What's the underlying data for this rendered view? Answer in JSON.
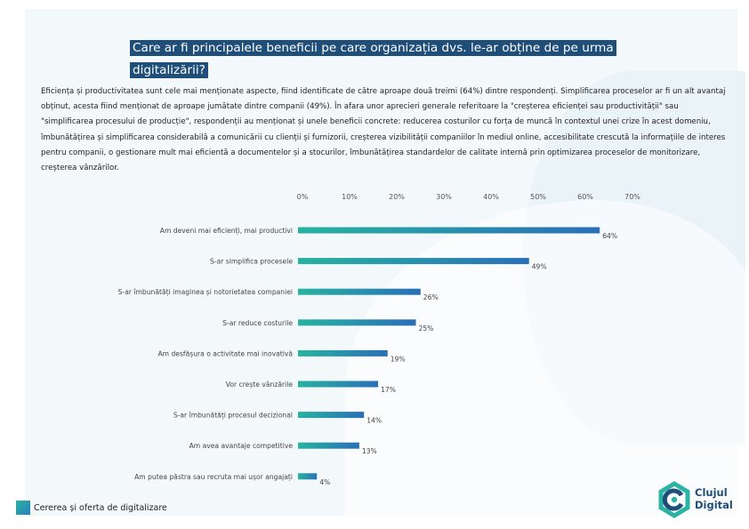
{
  "page": {
    "title": "Care ar fi principalele beneficii pe care organizația dvs. le-ar obține de pe urma digitalizării?",
    "body": "Eficiența și productivitatea sunt cele mai menționate aspecte, fiind identificate de către aproape două treimi (64%) dintre respondenți. Simplificarea proceselor ar fi un alt avantaj obținut, acesta fiind menționat de aproape jumătate dintre companii (49%).  În afara unor aprecieri generale referitoare la \"creșterea eficienței sau productivității\" sau \"simplificarea procesului de producție\", respondenții au menționat și unele beneficii concrete: reducerea costurilor cu forța de muncă în contextul unei crize în acest domeniu, îmbunătățirea și simplificarea considerabilă a comunicării cu clienții și furnizorii, creșterea vizibilității companiilor în mediul online, accesibilitate crescută la informațiile de interes pentru companii, o gestionare mult mai eficientă a documentelor și a stocurilor, îmbunătățirea standardelor de calitate internă prin optimizarea proceselor de monitorizare, creșterea vânzărilor.",
    "footer": "Cererea și oferta de digitalizare",
    "logo_line1": "Clujul",
    "logo_line2": "Digital"
  },
  "colors": {
    "title_bg": "#1f4e79",
    "bar_start": "#27b3a0",
    "bar_end": "#2a6fb8",
    "text": "#222222",
    "axis_text": "#555555"
  },
  "chart_data": {
    "type": "bar",
    "orientation": "horizontal",
    "xlim": [
      0,
      70
    ],
    "ticks": [
      "0%",
      "10%",
      "20%",
      "30%",
      "40%",
      "50%",
      "60%",
      "70%"
    ],
    "categories": [
      "Am deveni mai eficienți, mai productivi",
      "S-ar simplifica procesele",
      "S-ar îmbunătăți imaginea și notorietatea companiei",
      "S-ar reduce costurile",
      "Am desfășura o activitate mai inovativă",
      "Vor crește vânzările",
      "S-ar îmbunătăți procesul decizional",
      "Am avea avantaje competitive",
      "Am putea păstra sau recruta mai ușor angajați"
    ],
    "values": [
      64,
      49,
      26,
      25,
      19,
      17,
      14,
      13,
      4
    ],
    "value_labels": [
      "64%",
      "49%",
      "26%",
      "25%",
      "19%",
      "17%",
      "14%",
      "13%",
      "4%"
    ]
  }
}
